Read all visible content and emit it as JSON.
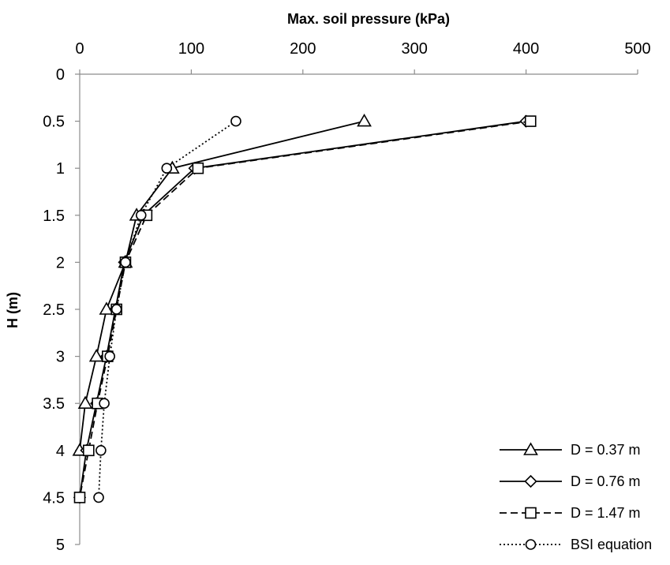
{
  "chart_data": {
    "type": "line",
    "title": "Max. soil pressure (kPa)",
    "xlabel": "Max. soil pressure (kPa)",
    "ylabel": "H (m)",
    "xlim": [
      0,
      500
    ],
    "ylim": [
      0,
      5
    ],
    "x_ticks": [
      0,
      100,
      200,
      300,
      400,
      500
    ],
    "y_ticks": [
      0,
      0.5,
      1,
      1.5,
      2,
      2.5,
      3,
      3.5,
      4,
      4.5,
      5
    ],
    "x_axis_position": "top",
    "y_axis_inverted": true,
    "grid": false,
    "legend_position": "bottom-right",
    "series": [
      {
        "name": "D = 0.37 m",
        "marker": "triangle",
        "line": "solid",
        "color": "#000000",
        "x": [
          255,
          83,
          51,
          41,
          24,
          15,
          5,
          0
        ],
        "y": [
          0.5,
          1,
          1.5,
          2,
          2.5,
          3,
          3.5,
          4
        ]
      },
      {
        "name": "D = 0.76 m",
        "marker": "diamond",
        "line": "solid",
        "color": "#000000",
        "x": [
          400,
          103,
          57,
          40,
          32,
          24,
          15,
          6,
          0
        ],
        "y": [
          0.5,
          1,
          1.5,
          2,
          2.5,
          3,
          3.5,
          4,
          4.5
        ]
      },
      {
        "name": "D = 1.47 m",
        "marker": "square",
        "line": "dashed",
        "color": "#000000",
        "x": [
          404,
          106,
          60,
          41,
          33,
          25,
          16,
          8,
          0
        ],
        "y": [
          0.5,
          1,
          1.5,
          2,
          2.5,
          3,
          3.5,
          4,
          4.5
        ]
      },
      {
        "name": "BSI equation",
        "marker": "circle",
        "line": "dotted",
        "color": "#000000",
        "x": [
          140,
          78,
          55,
          41,
          33,
          27,
          22,
          19,
          17
        ],
        "y": [
          0.5,
          1,
          1.5,
          2,
          2.5,
          3,
          3.5,
          4,
          4.5
        ]
      }
    ]
  }
}
